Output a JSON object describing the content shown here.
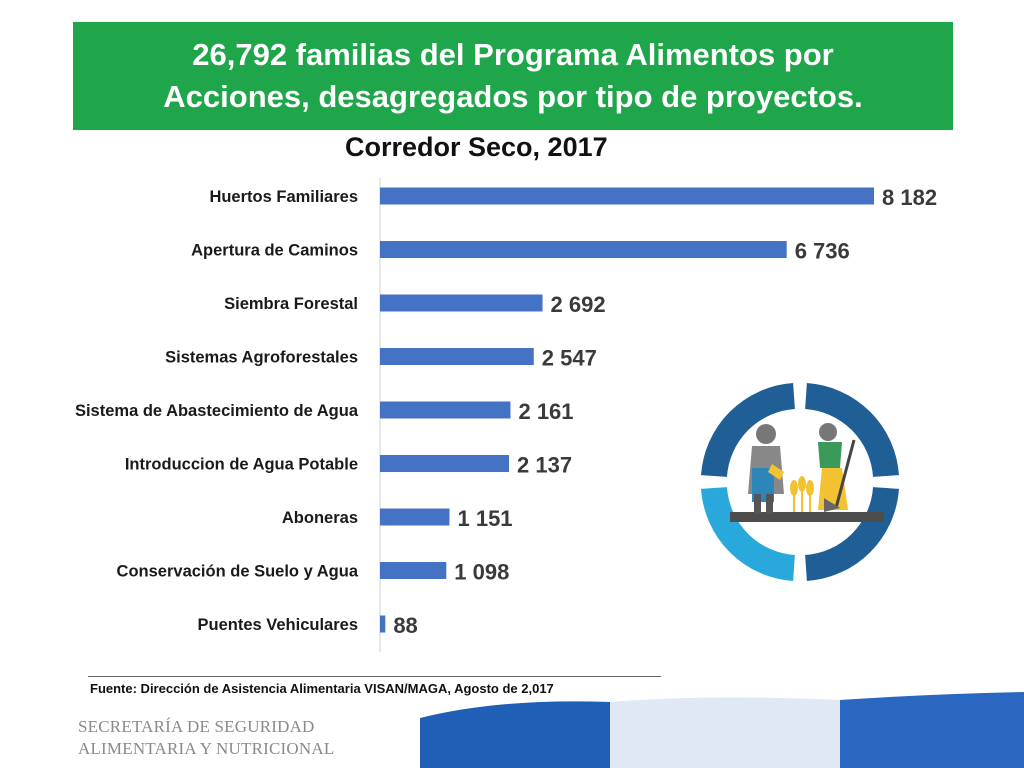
{
  "banner": {
    "title": "26,792 familias del Programa Alimentos por\nAcciones, desagregados por tipo de proyectos."
  },
  "subtitle": "Corredor Seco, 2017",
  "chart_data": {
    "type": "bar",
    "orientation": "horizontal",
    "categories": [
      "Huertos Familiares",
      "Apertura de Caminos",
      "Siembra Forestal",
      "Sistemas Agroforestales",
      "Sistema de Abastecimiento de Agua",
      "Introduccion de Agua Potable",
      "Aboneras",
      "Conservación de Suelo y Agua",
      "Puentes Vehiculares"
    ],
    "values": [
      8182,
      6736,
      2692,
      2547,
      2161,
      2137,
      1151,
      1098,
      88
    ],
    "value_labels": [
      "8 182",
      "6 736",
      "2 692",
      "2 547",
      "2 161",
      "2 137",
      "1 151",
      "1 098",
      "88"
    ],
    "bar_color": "#4472c4",
    "grid": false,
    "legend": "none"
  },
  "source": "Fuente: Dirección de Asistencia Alimentaria VISAN/MAGA, Agosto de 2,017",
  "logo": {
    "line1": "SECRETARÍA DE SEGURIDAD",
    "line2": "ALIMENTARIA Y NUTRICIONAL"
  },
  "colors": {
    "banner": "#1fa64a",
    "emblem_dark": "#1f5f96",
    "emblem_light": "#29a8dc",
    "figure_gray": "#888888"
  }
}
